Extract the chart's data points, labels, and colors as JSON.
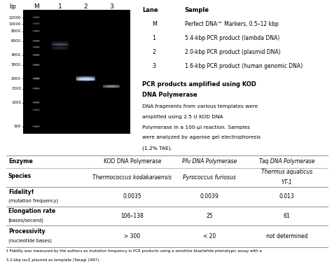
{
  "lane_labels": [
    "M",
    "1",
    "2",
    "3"
  ],
  "bp_label": "bp",
  "bp_markers": [
    12000,
    10000,
    8000,
    6000,
    4000,
    3000,
    2000,
    1500,
    1000,
    500
  ],
  "legend_title_lane": "Lane",
  "legend_title_sample": "Sample",
  "legend_rows": [
    [
      "M",
      "Perfect DNA™ Markers, 0.5–12 kbp"
    ],
    [
      "1",
      "5.4-kbp PCR product (lambda DNA)"
    ],
    [
      "2",
      "2.0-kbp PCR product (plasmid DNA)"
    ],
    [
      "3",
      "1.6-kbp PCR product (human genomic DNA)"
    ]
  ],
  "description_bold": "PCR products amplified using KOD\nDNA Polymerase",
  "description_normal": "DNA fragments from various templates were\namplified using 2.5 U KOD DNA\nPolymerase in a 100-μl reaction. Samples\nwere analyzed by agarose gel electrophoresis\n(1.2% TAE).",
  "table_headers": [
    "Enzyme",
    "KOD DNA Polymerase",
    "Pfu DNA Polymerase",
    "Taq DNA Polymerase"
  ],
  "table_rows": [
    [
      "Species",
      "Thermococcus kodakaraensis",
      "Pyrococcus furiosus",
      "Thermus aquaticus\nYT-1"
    ],
    [
      "Fidelity†\n(mutation frequency)",
      "0.0035",
      "0.0039",
      "0.013"
    ],
    [
      "Elongation rate\n(bases/second)",
      "106–138",
      "25",
      "61"
    ],
    [
      "Processivity\n(nucleotide bases)",
      "> 300",
      "< 20",
      "not determined"
    ]
  ],
  "footnote": "† Fidelity was measured by the authors as mutation frequency in PCR products using a sensitive blue/white phenotypic assay with a\n5.2-kbp lacZ plasmid as template (Takagi 1997).",
  "bg_color": "#ffffff",
  "table_line_color": "#999999"
}
